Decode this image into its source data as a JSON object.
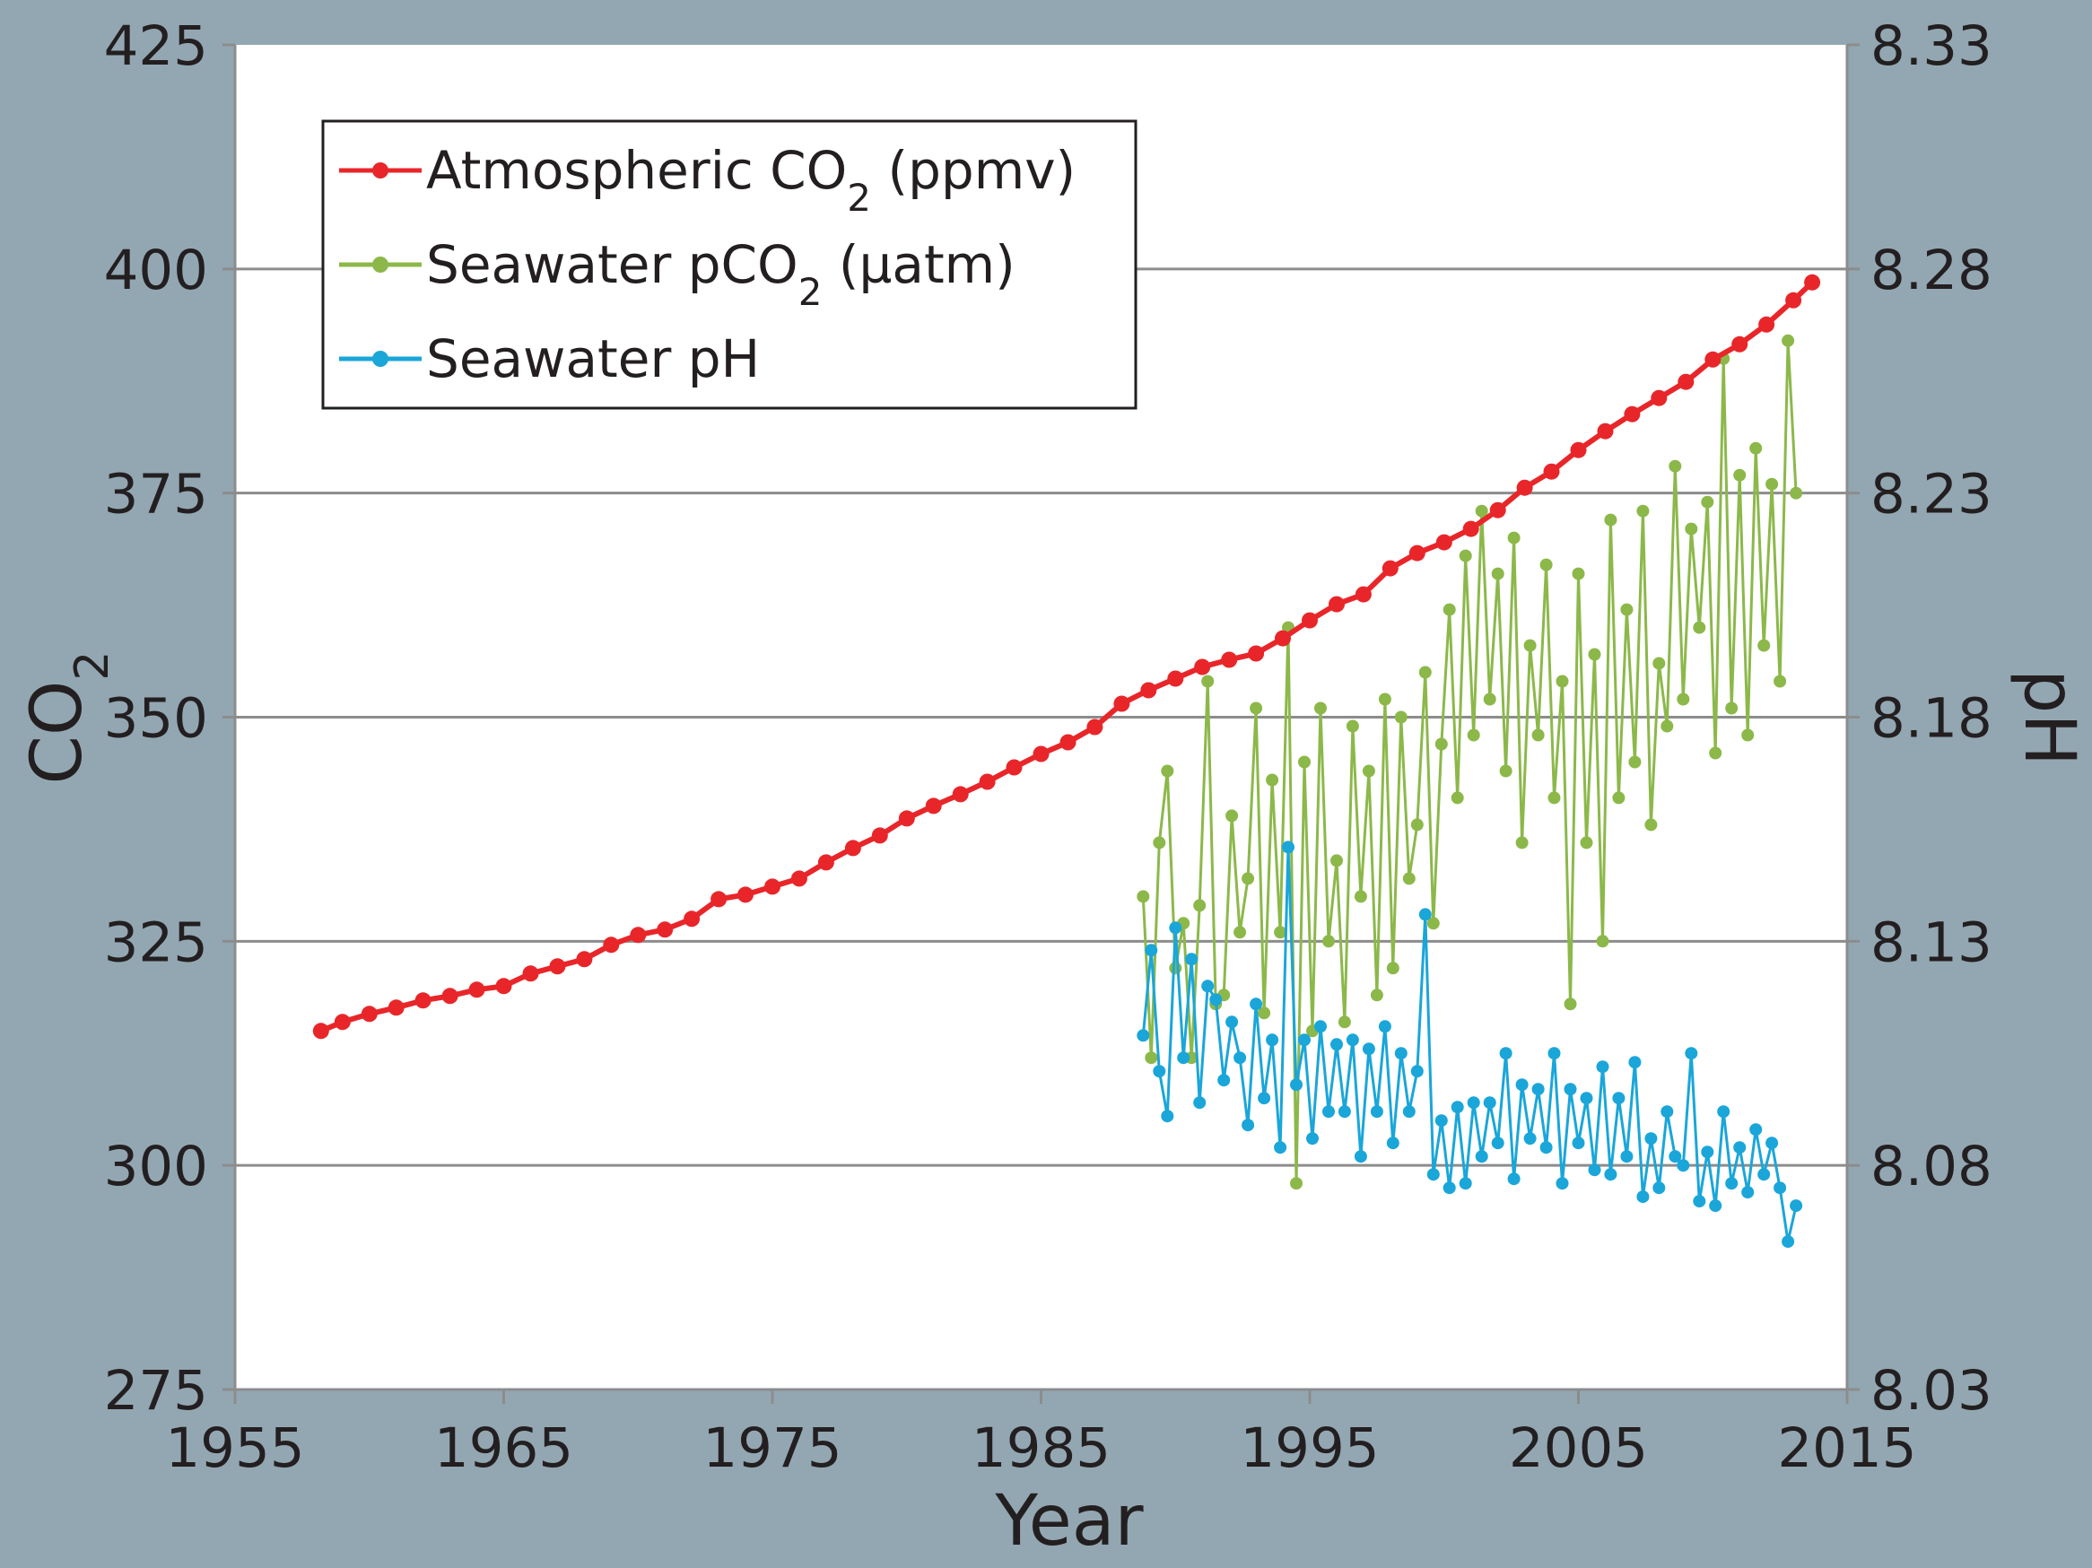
{
  "chart_data": {
    "type": "line",
    "xlabel": "Year",
    "ylabel_left": "CO₂",
    "ylabel_right": "pH",
    "x_ticks": [
      "1955",
      "1965",
      "1975",
      "1985",
      "1995",
      "2005",
      "2015"
    ],
    "y_left_ticks": [
      "275",
      "300",
      "325",
      "350",
      "375",
      "400",
      "425"
    ],
    "y_right_ticks": [
      "8.03",
      "8.08",
      "8.13",
      "8.18",
      "8.23",
      "8.28",
      "8.33"
    ],
    "xlim": [
      1955,
      2015
    ],
    "y_left_lim": [
      275,
      425
    ],
    "y_right_lim": [
      8.03,
      8.33
    ],
    "grid": true,
    "legend_position": "top-left",
    "series": [
      {
        "name": "Atmospheric CO₂ (ppmv)",
        "label_main": "Atmospheric CO",
        "label_sub": "2",
        "label_tail": " (ppmv)",
        "color": "#e8262a",
        "axis": "left",
        "x": [
          1958.2,
          1959,
          1960,
          1961,
          1962,
          1963,
          1964,
          1965,
          1966,
          1967,
          1968,
          1969,
          1970,
          1971,
          1972,
          1973,
          1974,
          1975,
          1976,
          1977,
          1978,
          1979,
          1980,
          1981,
          1982,
          1983,
          1984,
          1985,
          1986,
          1987,
          1988,
          1989,
          1990,
          1991,
          1992,
          1993,
          1994,
          1995,
          1996,
          1997,
          1998,
          1999,
          2000,
          2001,
          2002,
          2003,
          2004,
          2005,
          2006,
          2007,
          2008,
          2009,
          2010,
          2011,
          2012,
          2013,
          2013.7
        ],
        "values": [
          315.0,
          316.0,
          316.9,
          317.6,
          318.4,
          318.9,
          319.6,
          320.0,
          321.4,
          322.2,
          323.0,
          324.6,
          325.7,
          326.3,
          327.5,
          329.7,
          330.2,
          331.1,
          332.0,
          333.8,
          335.4,
          336.8,
          338.7,
          340.1,
          341.4,
          342.8,
          344.4,
          345.9,
          347.2,
          348.9,
          351.5,
          353.0,
          354.3,
          355.6,
          356.4,
          357.1,
          358.8,
          360.8,
          362.6,
          363.7,
          366.6,
          368.3,
          369.5,
          371.0,
          373.1,
          375.6,
          377.4,
          379.8,
          381.9,
          383.8,
          385.6,
          387.4,
          389.9,
          391.6,
          393.8,
          396.5,
          398.5
        ]
      },
      {
        "name": "Seawater pCO₂ (µatm)",
        "label_main": "Seawater pCO",
        "label_sub": "2",
        "label_tail": " (µatm)",
        "color": "#8cb84a",
        "axis": "left",
        "x": [
          1988.8,
          1989.1,
          1989.4,
          1989.7,
          1990.0,
          1990.3,
          1990.6,
          1990.9,
          1991.2,
          1991.5,
          1991.8,
          1992.1,
          1992.4,
          1992.7,
          1993.0,
          1993.3,
          1993.6,
          1993.9,
          1994.2,
          1994.5,
          1994.8,
          1995.1,
          1995.4,
          1995.7,
          1996.0,
          1996.3,
          1996.6,
          1996.9,
          1997.2,
          1997.5,
          1997.8,
          1998.1,
          1998.4,
          1998.7,
          1999.0,
          1999.3,
          1999.6,
          1999.9,
          2000.2,
          2000.5,
          2000.8,
          2001.1,
          2001.4,
          2001.7,
          2002.0,
          2002.3,
          2002.6,
          2002.9,
          2003.2,
          2003.5,
          2003.8,
          2004.1,
          2004.4,
          2004.7,
          2005.0,
          2005.3,
          2005.6,
          2005.9,
          2006.2,
          2006.5,
          2006.8,
          2007.1,
          2007.4,
          2007.7,
          2008.0,
          2008.3,
          2008.6,
          2008.9,
          2009.2,
          2009.5,
          2009.8,
          2010.1,
          2010.4,
          2010.7,
          2011.0,
          2011.3,
          2011.6,
          2011.9,
          2012.2,
          2012.5,
          2012.8,
          2013.1
        ],
        "values": [
          330,
          312,
          336,
          344,
          322,
          327,
          312,
          329,
          354,
          318,
          319,
          339,
          326,
          332,
          351,
          317,
          343,
          326,
          360,
          298,
          345,
          315,
          351,
          325,
          334,
          316,
          349,
          330,
          344,
          319,
          352,
          322,
          350,
          332,
          338,
          355,
          327,
          347,
          362,
          341,
          368,
          348,
          373,
          352,
          366,
          344,
          370,
          336,
          358,
          348,
          367,
          341,
          354,
          318,
          366,
          336,
          357,
          325,
          372,
          341,
          362,
          345,
          373,
          338,
          356,
          349,
          378,
          352,
          371,
          360,
          374,
          346,
          390,
          351,
          377,
          348,
          380,
          358,
          376,
          354,
          392,
          375
        ]
      },
      {
        "name": "Seawater pH",
        "label_main": "Seawater pH",
        "label_sub": "",
        "label_tail": "",
        "color": "#1aa6d9",
        "axis": "right",
        "x": [
          1988.8,
          1989.1,
          1989.4,
          1989.7,
          1990.0,
          1990.3,
          1990.6,
          1990.9,
          1991.2,
          1991.5,
          1991.8,
          1992.1,
          1992.4,
          1992.7,
          1993.0,
          1993.3,
          1993.6,
          1993.9,
          1994.2,
          1994.5,
          1994.8,
          1995.1,
          1995.4,
          1995.7,
          1996.0,
          1996.3,
          1996.6,
          1996.9,
          1997.2,
          1997.5,
          1997.8,
          1998.1,
          1998.4,
          1998.7,
          1999.0,
          1999.3,
          1999.6,
          1999.9,
          2000.2,
          2000.5,
          2000.8,
          2001.1,
          2001.4,
          2001.7,
          2002.0,
          2002.3,
          2002.6,
          2002.9,
          2003.2,
          2003.5,
          2003.8,
          2004.1,
          2004.4,
          2004.7,
          2005.0,
          2005.3,
          2005.6,
          2005.9,
          2006.2,
          2006.5,
          2006.8,
          2007.1,
          2007.4,
          2007.7,
          2008.0,
          2008.3,
          2008.6,
          2008.9,
          2009.2,
          2009.5,
          2009.8,
          2010.1,
          2010.4,
          2010.7,
          2011.0,
          2011.3,
          2011.6,
          2011.9,
          2012.2,
          2012.5,
          2012.8,
          2013.1
        ],
        "values": [
          8.109,
          8.128,
          8.101,
          8.091,
          8.133,
          8.104,
          8.126,
          8.094,
          8.12,
          8.117,
          8.099,
          8.112,
          8.104,
          8.089,
          8.116,
          8.095,
          8.108,
          8.084,
          8.151,
          8.098,
          8.108,
          8.086,
          8.111,
          8.092,
          8.107,
          8.092,
          8.108,
          8.082,
          8.106,
          8.092,
          8.111,
          8.085,
          8.105,
          8.092,
          8.101,
          8.136,
          8.078,
          8.09,
          8.075,
          8.093,
          8.076,
          8.094,
          8.082,
          8.094,
          8.085,
          8.105,
          8.077,
          8.098,
          8.086,
          8.097,
          8.084,
          8.105,
          8.076,
          8.097,
          8.085,
          8.095,
          8.079,
          8.102,
          8.078,
          8.095,
          8.082,
          8.103,
          8.073,
          8.086,
          8.075,
          8.092,
          8.082,
          8.08,
          8.105,
          8.072,
          8.083,
          8.071,
          8.092,
          8.076,
          8.084,
          8.074,
          8.088,
          8.078,
          8.085,
          8.075,
          8.063,
          8.071
        ]
      }
    ]
  }
}
